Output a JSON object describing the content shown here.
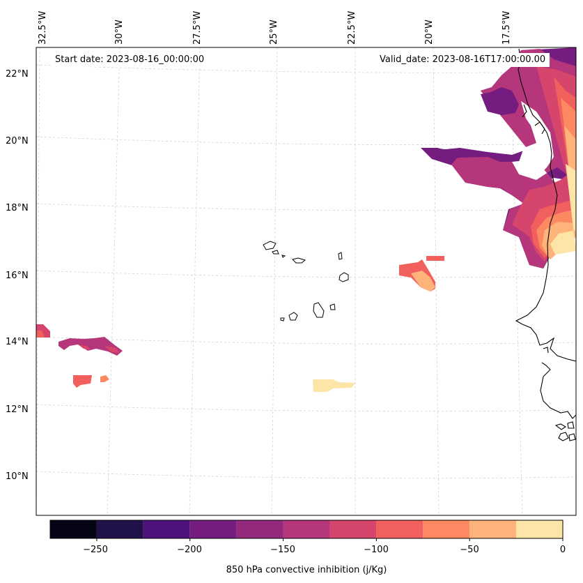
{
  "map": {
    "variable_label": "850 hPa convective inhibition (j/Kg)",
    "start_date_text": "Start date: 2023-08-16_00:00:00",
    "valid_date_text": "Valid_date: 2023-08-16T17:00:00.00",
    "longitude_labels": [
      "32.5°W",
      "30°W",
      "27.5°W",
      "25°W",
      "22.5°W",
      "20°W",
      "17.5°W"
    ],
    "latitude_labels": [
      "22°N",
      "20°N",
      "18°N",
      "16°N",
      "14°N",
      "12°N",
      "10°N"
    ],
    "region": "Cabo Verde and West African coast"
  },
  "colorbar": {
    "min": -275,
    "max": 0,
    "step": 25,
    "tick_values": [
      -250,
      -200,
      -150,
      -100,
      -50,
      0
    ],
    "tick_labels": [
      "−250",
      "−200",
      "−150",
      "−100",
      "−50",
      "0"
    ],
    "colors": [
      "#050414",
      "#20114b",
      "#4f127b",
      "#751c81",
      "#942a7e",
      "#b5367a",
      "#d6456c",
      "#f1605d",
      "#fc8961",
      "#feb37a",
      "#fde5a7"
    ]
  }
}
